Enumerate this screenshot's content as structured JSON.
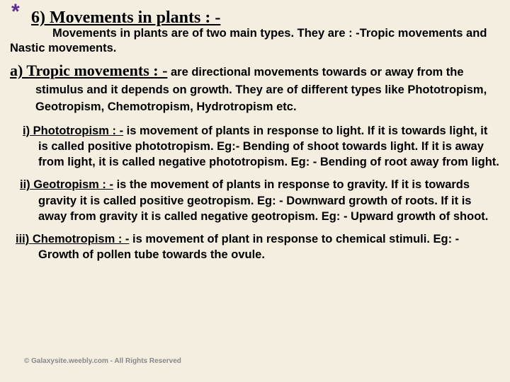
{
  "star": "*",
  "main_title": "6) Movements in plants : -",
  "intro": "Movements in plants are of two main types. They are : -Tropic movements and Nastic movements.",
  "section_a": {
    "head": "a) Tropic movements : -",
    "body": " are directional movements towards or away from the stimulus and it depends on  growth. They are of different types like Phototropism, Geotropism, Chemotropism, Hydrotropism etc."
  },
  "sub_i": {
    "head": "i) Phototropism : -",
    "body": " is movement of plants in response to light. If it is towards light, it is called positive phototropism. Eg:- Bending of shoot towards light. If it is away from light, it is called negative phototropism. Eg: - Bending of root away from light."
  },
  "sub_ii": {
    "head": "ii) Geotropism : -",
    "body": " is the movement of plants in response to gravity. If it is towards gravity it is called positive geotropism. Eg: - Downward growth of roots. If it is away from gravity it is called negative geotropism. Eg: - Upward growth of shoot."
  },
  "sub_iii": {
    "head": "iii) Chemotropism : -",
    "body": " is movement of plant in response to chemical stimuli. Eg: - Growth of pollen tube towards the ovule."
  },
  "copyright": "© Galaxysite.weebly.com - All Rights Reserved",
  "style": {
    "bg": "#f4eee0",
    "star_color": "#5e2c90",
    "star_fontsize": 30,
    "main_title_fontsize": 24,
    "body_fontsize": 16.5,
    "section_head_fontsize": 22,
    "sub_fontsize": 16.5,
    "copyright_fontsize": 10
  }
}
